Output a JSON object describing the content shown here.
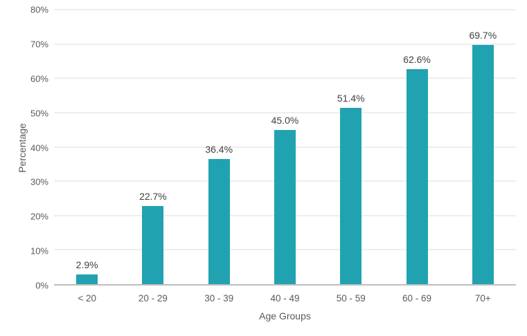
{
  "colors": {
    "bar": "#21A2B1",
    "gridline": "#DCDCDC",
    "axis_line": "#BDBDBD",
    "tick_text": "#595959",
    "data_label_text": "#404040",
    "background": "#FFFFFF"
  },
  "chart_data": {
    "type": "bar",
    "title": "",
    "categories": [
      "< 20",
      "20 - 29",
      "30 - 39",
      "40 - 49",
      "50 - 59",
      "60 - 69",
      "70+"
    ],
    "values": [
      2.9,
      22.7,
      36.4,
      45.0,
      51.4,
      62.6,
      69.7
    ],
    "data_labels": [
      "2.9%",
      "22.7%",
      "36.4%",
      "45.0%",
      "51.4%",
      "62.6%",
      "69.7%"
    ],
    "xlabel": "Age Groups",
    "ylabel": "Percentage",
    "ylim": [
      0,
      80
    ],
    "ytick_step": 10,
    "ytick_labels": [
      "0%",
      "10%",
      "20%",
      "30%",
      "40%",
      "50%",
      "60%",
      "70%",
      "80%"
    ],
    "grid": true,
    "legend": false
  }
}
